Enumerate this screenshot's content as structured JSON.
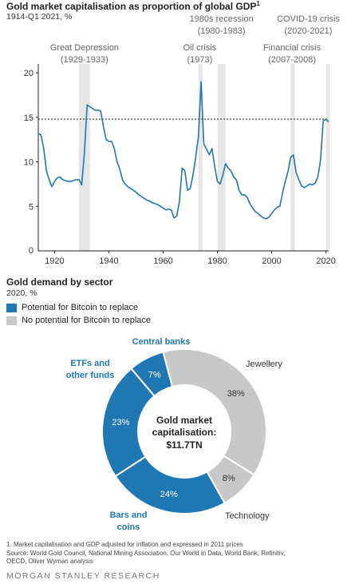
{
  "line_chart": {
    "title": "Gold market capitalisation as proportion of global GDP",
    "title_sup": "1",
    "subtitle": "1914-Q1 2021, %"
  },
  "donut_chart": {
    "title": "Gold demand by sector",
    "subtitle": "2020, %",
    "legend": [
      {
        "label": "Potential for Bitcoin to replace",
        "color": "#1f77b4"
      },
      {
        "label": "No potential for Bitcoin to replace",
        "color": "#c8c8c8"
      }
    ],
    "center_line1": "Gold market",
    "center_line2": "capitalisation:",
    "center_line3": "$11.7TN"
  },
  "footnote": {
    "line1": "1. Market capitalisation and GDP adjusted for inflation and expressed in 2011 prices",
    "line2": "Source: World Gold Council, National Mining Association, Our World in Data, World Bank, Refinitiv,",
    "line3": "OECD, Oliver Wyman analysis"
  },
  "brand": "MORGAN STANLEY RESEARCH",
  "colors": {
    "bitcoin": "#1f77b4",
    "no_bitcoin": "#c8c8c8",
    "line": "#1f77b4",
    "shade": "#e6e6e6"
  },
  "chart_data": [
    {
      "type": "line",
      "title": "Gold market capitalisation as proportion of global GDP",
      "subtitle": "1914-Q1 2021, %",
      "xlim": [
        1914,
        2021
      ],
      "ylim": [
        0,
        21
      ],
      "xticks": [
        1920,
        1940,
        1960,
        1980,
        2000,
        2020
      ],
      "yticks": [
        5,
        10,
        15,
        20
      ],
      "reference_line": 14.8,
      "shaded_periods": [
        {
          "label1": "Great Depression",
          "label2": "(1929-1933)",
          "start": 1929,
          "end": 1933
        },
        {
          "label1": "Oil crisis",
          "label2": "(1973)",
          "start": 1973,
          "end": 1974.5
        },
        {
          "label1": "1980s recession",
          "label2": "(1980-1983)",
          "start": 1980,
          "end": 1983
        },
        {
          "label1": "Financial crisis",
          "label2": "(2007-2008)",
          "start": 2007,
          "end": 2008.5
        },
        {
          "label1": "COVID-19 crisis",
          "label2": "(2020-2021)",
          "start": 2020,
          "end": 2021
        }
      ],
      "x": [
        1914,
        1915,
        1916,
        1917,
        1918,
        1919,
        1920,
        1921,
        1922,
        1923,
        1924,
        1925,
        1926,
        1927,
        1928,
        1929,
        1930,
        1931,
        1932,
        1933,
        1934,
        1935,
        1936,
        1937,
        1938,
        1939,
        1940,
        1941,
        1942,
        1943,
        1944,
        1945,
        1946,
        1947,
        1948,
        1949,
        1950,
        1951,
        1952,
        1953,
        1954,
        1955,
        1956,
        1957,
        1958,
        1959,
        1960,
        1961,
        1962,
        1963,
        1964,
        1965,
        1966,
        1967,
        1968,
        1969,
        1970,
        1971,
        1972,
        1973,
        1974,
        1975,
        1976,
        1977,
        1978,
        1979,
        1980,
        1981,
        1982,
        1983,
        1984,
        1985,
        1986,
        1987,
        1988,
        1989,
        1990,
        1991,
        1992,
        1993,
        1994,
        1995,
        1996,
        1997,
        1998,
        1999,
        2000,
        2001,
        2002,
        2003,
        2004,
        2005,
        2006,
        2007,
        2008,
        2009,
        2010,
        2011,
        2012,
        2013,
        2014,
        2015,
        2016,
        2017,
        2018,
        2019,
        2020,
        2021
      ],
      "y": [
        13.2,
        13.0,
        11.5,
        9.0,
        8.0,
        7.2,
        7.8,
        8.2,
        8.3,
        8.0,
        7.9,
        7.8,
        7.8,
        7.9,
        8.0,
        8.0,
        7.4,
        11.0,
        16.4,
        16.2,
        16.0,
        15.8,
        15.8,
        15.7,
        14.0,
        12.5,
        12.3,
        12.3,
        11.5,
        10.0,
        9.2,
        8.0,
        7.5,
        7.2,
        7.0,
        6.8,
        6.6,
        6.3,
        6.1,
        5.9,
        5.7,
        5.6,
        5.4,
        5.3,
        5.2,
        5.0,
        4.8,
        4.6,
        4.7,
        4.6,
        3.7,
        3.9,
        5.5,
        9.3,
        9.0,
        6.8,
        7.0,
        8.5,
        10.5,
        12.8,
        19.0,
        12.0,
        11.4,
        10.8,
        11.5,
        9.5,
        7.8,
        7.5,
        8.5,
        9.8,
        9.3,
        9.0,
        8.3,
        8.0,
        6.8,
        6.3,
        6.3,
        6.0,
        5.3,
        4.8,
        4.4,
        4.2,
        3.9,
        3.7,
        3.6,
        3.8,
        4.2,
        4.6,
        4.9,
        5.0,
        6.5,
        7.8,
        8.9,
        10.5,
        10.8,
        8.8,
        8.0,
        7.3,
        7.1,
        7.3,
        7.5,
        7.4,
        7.6,
        8.3,
        10.2,
        14.6,
        14.8,
        14.5
      ]
    },
    {
      "type": "pie",
      "title": "Gold demand by sector",
      "subtitle": "2020, %",
      "slices": [
        {
          "label": "Jewellery",
          "value": 38,
          "display": "38%",
          "bitcoin": false
        },
        {
          "label": "Technology",
          "value": 8,
          "display": "8%",
          "bitcoin": false
        },
        {
          "label": "Bars and coins",
          "value": 24,
          "display": "24%",
          "bitcoin": true
        },
        {
          "label": "ETFs and other funds",
          "value": 23,
          "display": "23%",
          "bitcoin": true
        },
        {
          "label": "Central banks",
          "value": 7,
          "display": "7%",
          "bitcoin": true
        }
      ],
      "slice_labels": {
        "jewellery": "Jewellery",
        "technology": "Technology",
        "bars1": "Bars and",
        "bars2": "coins",
        "etf1": "ETFs and",
        "etf2": "other funds",
        "central": "Central banks"
      }
    }
  ]
}
